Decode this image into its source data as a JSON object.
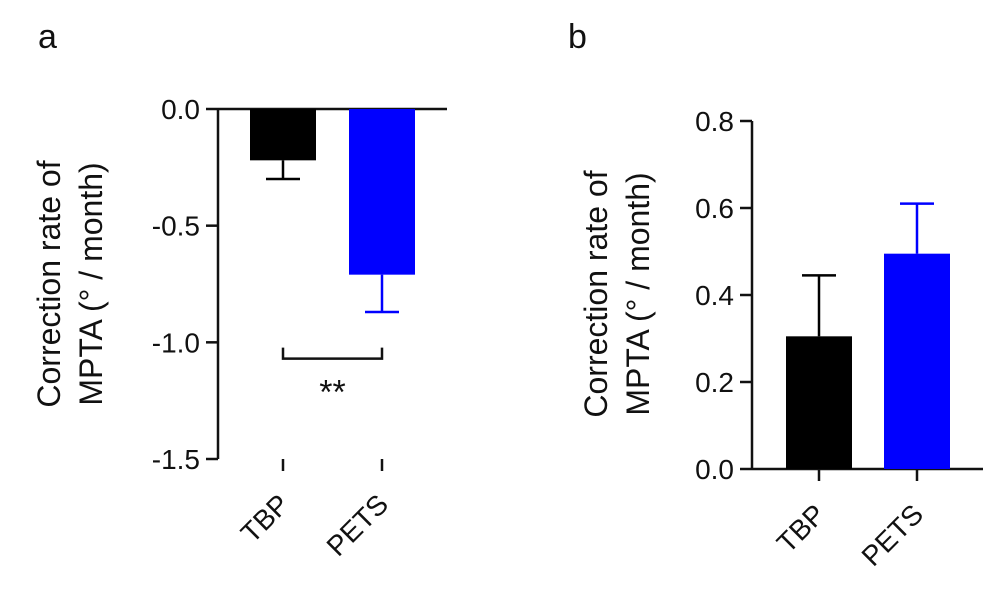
{
  "colors": {
    "TBP": "#000000",
    "PETS": "#0000ff",
    "axis": "#111111"
  },
  "chart_data": [
    {
      "panel": "a",
      "type": "bar",
      "title": "",
      "ylabel_line1": "Correction rate of",
      "ylabel_line2": "MPTA (° / month)",
      "xlabel": "",
      "categories": [
        "TBP",
        "PETS"
      ],
      "values": [
        -0.22,
        -0.71
      ],
      "errors": [
        0.08,
        0.16
      ],
      "error_direction": "down",
      "ylim": [
        -1.5,
        0.0
      ],
      "yticks": [
        0.0,
        -0.5,
        -1.0,
        -1.5
      ],
      "ytick_labels": [
        "0.0",
        "-0.5",
        "-1.0",
        "-1.5"
      ],
      "annotation": {
        "text": "**",
        "between": [
          "TBP",
          "PETS"
        ],
        "y": -1.07
      }
    },
    {
      "panel": "b",
      "type": "bar",
      "title": "",
      "ylabel_line1": "Correction rate of",
      "ylabel_line2": "MPTA (° / month)",
      "xlabel": "",
      "categories": [
        "TBP",
        "PETS"
      ],
      "values": [
        0.305,
        0.495
      ],
      "errors": [
        0.14,
        0.115
      ],
      "error_direction": "up",
      "ylim": [
        0.0,
        0.8
      ],
      "yticks": [
        0.0,
        0.2,
        0.4,
        0.6,
        0.8
      ],
      "ytick_labels": [
        "0.0",
        "0.2",
        "0.4",
        "0.6",
        "0.8"
      ]
    }
  ]
}
